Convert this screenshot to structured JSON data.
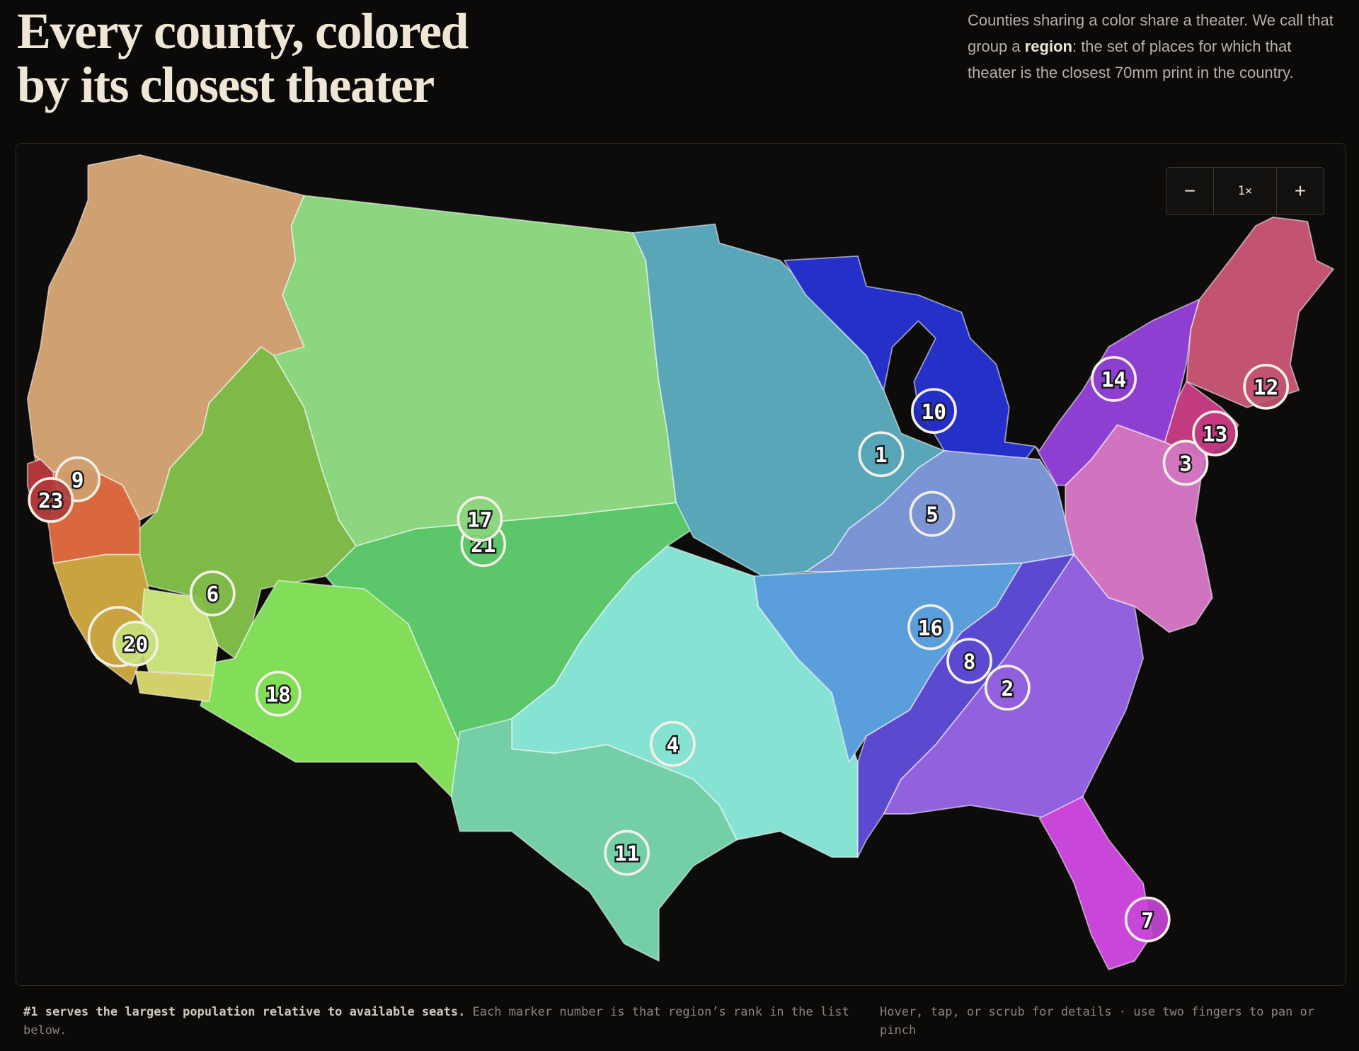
{
  "header": {
    "title_lines": [
      "Every county, colored",
      "by its closest theater"
    ],
    "description": {
      "before": "Counties sharing a color share a theater. We call that group a ",
      "bold": "region",
      "after": ": the set of places for which that theater is the closest 70mm print in the country."
    }
  },
  "zoom": {
    "minus": "−",
    "level": "1×",
    "plus": "+"
  },
  "map": {
    "regions": [
      {
        "color": "#cfa070",
        "marker": "9"
      },
      {
        "color": "#7fba48",
        "marker": "6"
      },
      {
        "color": "#5cc76a",
        "marker": "21"
      },
      {
        "color": "#8bd67f",
        "marker": "17"
      },
      {
        "color": "#82dd58",
        "marker": "18"
      },
      {
        "color": "#c9a43e"
      },
      {
        "color": "#c7e27a",
        "marker": "20"
      },
      {
        "color": "#d3cf6a"
      },
      {
        "color": "#d9683f"
      },
      {
        "color": "#b0383a",
        "marker": "23"
      },
      {
        "color": "#86e2d3",
        "marker": "4"
      },
      {
        "color": "#74cfa6",
        "marker": "11"
      },
      {
        "color": "#58a6b8",
        "marker": "1"
      },
      {
        "color": "#2530c8",
        "marker": "10"
      },
      {
        "color": "#7a94d4",
        "marker": "5"
      },
      {
        "color": "#5a9fdc",
        "marker": "16"
      },
      {
        "color": "#5b49d0",
        "marker": "8"
      },
      {
        "color": "#9261dd",
        "marker": "2"
      },
      {
        "color": "#c947d8",
        "marker": "7"
      },
      {
        "color": "#d174c0",
        "marker": "3"
      },
      {
        "color": "#8e3ed0",
        "marker": "14"
      },
      {
        "color": "#c23a80",
        "marker": "13"
      },
      {
        "color": "#c25471",
        "marker": "12"
      }
    ]
  },
  "footer": {
    "note_bold": "#1 serves the largest population relative to available seats.",
    "note": " Each marker number is that region’s rank in the list below.",
    "hint": "Hover, tap, or scrub for details · use two fingers to pan or pinch"
  }
}
